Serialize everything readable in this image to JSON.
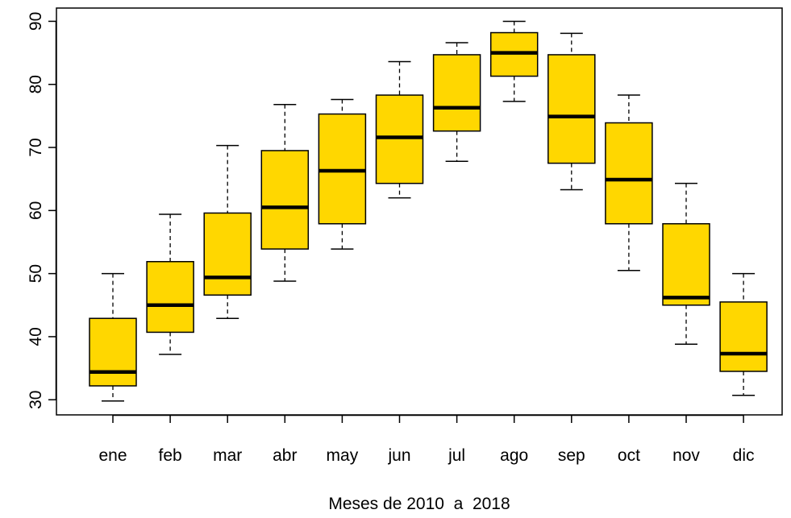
{
  "chart_data": {
    "type": "boxplot",
    "title": "",
    "xlabel": "Meses de 2010  a  2018",
    "ylabel": "",
    "categories": [
      "ene",
      "feb",
      "mar",
      "abr",
      "may",
      "jun",
      "jul",
      "ago",
      "sep",
      "oct",
      "nov",
      "dic"
    ],
    "boxes": [
      {
        "min": 29.8,
        "q1": 32.2,
        "median": 34.4,
        "q3": 42.9,
        "max": 50.0
      },
      {
        "min": 37.2,
        "q1": 40.7,
        "median": 45.0,
        "q3": 51.9,
        "max": 59.4
      },
      {
        "min": 42.9,
        "q1": 46.6,
        "median": 49.4,
        "q3": 59.6,
        "max": 70.3
      },
      {
        "min": 48.8,
        "q1": 53.9,
        "median": 60.5,
        "q3": 69.5,
        "max": 76.8
      },
      {
        "min": 53.9,
        "q1": 57.9,
        "median": 66.3,
        "q3": 75.3,
        "max": 77.6
      },
      {
        "min": 62.0,
        "q1": 64.3,
        "median": 71.6,
        "q3": 78.3,
        "max": 83.6
      },
      {
        "min": 67.8,
        "q1": 72.6,
        "median": 76.3,
        "q3": 84.7,
        "max": 86.6
      },
      {
        "min": 77.3,
        "q1": 81.3,
        "median": 85.0,
        "q3": 88.2,
        "max": 90.0
      },
      {
        "min": 63.3,
        "q1": 67.5,
        "median": 74.9,
        "q3": 84.7,
        "max": 88.1
      },
      {
        "min": 50.5,
        "q1": 57.9,
        "median": 64.9,
        "q3": 73.9,
        "max": 78.3
      },
      {
        "min": 38.8,
        "q1": 45.0,
        "median": 46.2,
        "q3": 57.9,
        "max": 64.3
      },
      {
        "min": 30.7,
        "q1": 34.5,
        "median": 37.3,
        "q3": 45.5,
        "max": 50.0
      }
    ],
    "yticks": [
      30,
      40,
      50,
      60,
      70,
      80,
      90
    ],
    "ylim": [
      27.6,
      92.1
    ],
    "grid": false,
    "box_color": "#FFD700"
  }
}
